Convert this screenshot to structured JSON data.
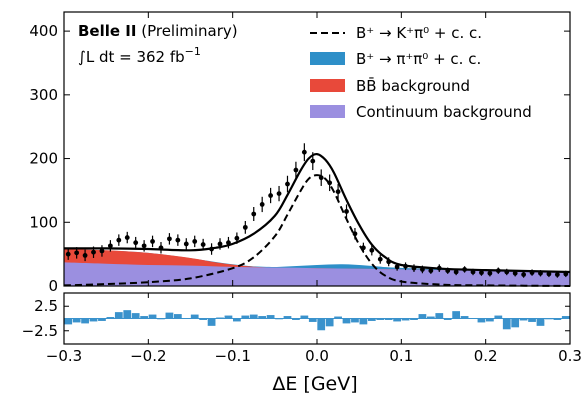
{
  "chart_data": {
    "type": "area",
    "xlabel": "ΔE [GeV]",
    "ylabel": "",
    "xlim": [
      -0.3,
      0.3
    ],
    "ylim": [
      0,
      430
    ],
    "pull_ylim": [
      -5.2,
      5.2
    ],
    "x_ticks": [
      -0.3,
      -0.2,
      -0.1,
      0.0,
      0.1,
      0.2,
      0.3
    ],
    "x_tick_labels": [
      "−0.3",
      "−0.2",
      "−0.1",
      "0.0",
      "0.1",
      "0.2",
      "0.3"
    ],
    "y_ticks": [
      0,
      100,
      200,
      300,
      400
    ],
    "y_tick_labels": [
      "0",
      "100",
      "200",
      "300",
      "400"
    ],
    "pull_ticks": [
      2.5,
      -2.5
    ],
    "pull_tick_labels": [
      "2.5",
      "−2.5"
    ],
    "annotations": {
      "experiment": "Belle II",
      "status": "(Preliminary)",
      "lumi_prefix": "∫L dt = 362 fb",
      "lumi_exp": "−1"
    },
    "legend": {
      "placement": "top-right",
      "entries": [
        {
          "label": "B⁺ → K⁺π⁰ + c. c.",
          "style": "dashed",
          "color": "#000000"
        },
        {
          "label": "B⁺ → π⁺π⁰ + c. c.",
          "style": "fill",
          "color": "#2e8fc8"
        },
        {
          "label": "BB̄ background",
          "style": "fill",
          "color": "#e8493a"
        },
        {
          "label": "Continuum background",
          "style": "fill",
          "color": "#9b8fe0"
        }
      ]
    },
    "colors": {
      "continuum": "#9b8fe0",
      "bbbar": "#e8493a",
      "pipi": "#2e8fc8",
      "pull": "#3a92cc"
    },
    "series": [
      {
        "name": "Continuum background",
        "x": [
          -0.3,
          -0.25,
          -0.2,
          -0.15,
          -0.1,
          -0.05,
          0.0,
          0.05,
          0.1,
          0.15,
          0.2,
          0.25,
          0.3
        ],
        "values": [
          37,
          35,
          33,
          32,
          30,
          29,
          28,
          27,
          26,
          25,
          24,
          23,
          22
        ]
      },
      {
        "name": "BB̄ background",
        "x": [
          -0.3,
          -0.25,
          -0.2,
          -0.15,
          -0.12,
          -0.09,
          -0.06,
          -0.03,
          0.0,
          0.05,
          0.1,
          0.2,
          0.3
        ],
        "values": [
          58,
          56,
          52,
          44,
          37,
          32,
          29,
          28,
          28,
          27,
          26,
          24,
          22
        ]
      },
      {
        "name": "B⁺ → π⁺π⁰ + c. c.",
        "x": [
          -0.3,
          -0.2,
          -0.1,
          -0.06,
          -0.03,
          0.0,
          0.03,
          0.06,
          0.09,
          0.15,
          0.2,
          0.3
        ],
        "values": [
          58,
          52,
          34,
          30,
          31,
          33,
          34,
          32,
          29,
          26,
          24,
          22
        ]
      },
      {
        "name": "B⁺ → K⁺π⁰ + c. c.",
        "x": [
          -0.3,
          -0.25,
          -0.2,
          -0.15,
          -0.1,
          -0.075,
          -0.05,
          -0.035,
          -0.02,
          -0.01,
          0.0,
          0.01,
          0.02,
          0.035,
          0.05,
          0.065,
          0.08,
          0.1,
          0.15,
          0.2,
          0.3
        ],
        "values": [
          1,
          3,
          6,
          12,
          28,
          45,
          78,
          112,
          148,
          168,
          174,
          168,
          148,
          105,
          65,
          35,
          17,
          7,
          2,
          1,
          0
        ]
      },
      {
        "name": "Total fit",
        "x": [
          -0.3,
          -0.25,
          -0.2,
          -0.15,
          -0.12,
          -0.1,
          -0.075,
          -0.05,
          -0.035,
          -0.02,
          -0.01,
          0.0,
          0.01,
          0.02,
          0.035,
          0.05,
          0.065,
          0.08,
          0.1,
          0.15,
          0.2,
          0.3
        ],
        "values": [
          59,
          59,
          58,
          56,
          60,
          66,
          82,
          110,
          143,
          180,
          200,
          207,
          198,
          178,
          135,
          96,
          65,
          46,
          33,
          27,
          25,
          22
        ]
      },
      {
        "name": "Data",
        "x": [
          -0.295,
          -0.285,
          -0.275,
          -0.265,
          -0.255,
          -0.245,
          -0.235,
          -0.225,
          -0.215,
          -0.205,
          -0.195,
          -0.185,
          -0.175,
          -0.165,
          -0.155,
          -0.145,
          -0.135,
          -0.125,
          -0.115,
          -0.105,
          -0.095,
          -0.085,
          -0.075,
          -0.065,
          -0.055,
          -0.045,
          -0.035,
          -0.025,
          -0.015,
          -0.005,
          0.005,
          0.015,
          0.025,
          0.035,
          0.045,
          0.055,
          0.065,
          0.075,
          0.085,
          0.095,
          0.105,
          0.115,
          0.125,
          0.135,
          0.145,
          0.155,
          0.165,
          0.175,
          0.185,
          0.195,
          0.205,
          0.215,
          0.225,
          0.235,
          0.245,
          0.255,
          0.265,
          0.275,
          0.285,
          0.295
        ],
        "values": [
          50,
          52,
          48,
          53,
          55,
          63,
          72,
          76,
          68,
          63,
          70,
          60,
          74,
          72,
          66,
          70,
          65,
          58,
          66,
          68,
          75,
          92,
          113,
          128,
          142,
          145,
          160,
          182,
          210,
          196,
          170,
          162,
          148,
          117,
          82,
          60,
          56,
          42,
          38,
          30,
          31,
          28,
          26,
          24,
          28,
          24,
          22,
          26,
          22,
          21,
          20,
          24,
          22,
          20,
          18,
          21,
          20,
          19,
          18,
          19
        ],
        "errors": [
          9,
          9,
          9,
          9,
          9,
          9,
          9,
          9,
          9,
          9,
          9,
          9,
          9,
          9,
          9,
          9,
          9,
          9,
          9,
          9,
          9,
          10,
          11,
          12,
          12,
          12,
          13,
          13,
          14,
          14,
          13,
          13,
          12,
          11,
          9,
          8,
          8,
          7,
          7,
          6,
          6,
          6,
          6,
          5,
          6,
          5,
          5,
          5,
          5,
          5,
          5,
          5,
          5,
          5,
          5,
          5,
          5,
          5,
          5,
          5
        ]
      },
      {
        "name": "Pull",
        "x": [
          -0.295,
          -0.285,
          -0.275,
          -0.265,
          -0.255,
          -0.245,
          -0.235,
          -0.225,
          -0.215,
          -0.205,
          -0.195,
          -0.185,
          -0.175,
          -0.165,
          -0.155,
          -0.145,
          -0.135,
          -0.125,
          -0.115,
          -0.105,
          -0.095,
          -0.085,
          -0.075,
          -0.065,
          -0.055,
          -0.045,
          -0.035,
          -0.025,
          -0.015,
          -0.005,
          0.005,
          0.015,
          0.025,
          0.035,
          0.045,
          0.055,
          0.065,
          0.075,
          0.085,
          0.095,
          0.105,
          0.115,
          0.125,
          0.135,
          0.145,
          0.155,
          0.165,
          0.175,
          0.185,
          0.195,
          0.205,
          0.215,
          0.225,
          0.235,
          0.245,
          0.255,
          0.265,
          0.275,
          0.285,
          0.295
        ],
        "values": [
          -1.2,
          -0.8,
          -1.0,
          -0.6,
          -0.5,
          0.3,
          1.3,
          1.7,
          1.1,
          0.5,
          0.8,
          -0.1,
          1.2,
          0.9,
          0.1,
          0.8,
          -0.3,
          -1.5,
          0.2,
          0.6,
          -0.6,
          0.6,
          0.8,
          0.5,
          0.7,
          0.0,
          0.5,
          -0.3,
          0.6,
          -0.7,
          -2.4,
          -1.6,
          0.4,
          -1.0,
          -0.8,
          -1.2,
          -0.5,
          -0.3,
          -0.3,
          -0.6,
          -0.4,
          -0.3,
          0.9,
          0.4,
          1.1,
          -0.3,
          1.5,
          0.5,
          0.1,
          -0.8,
          -0.6,
          0.6,
          -2.2,
          -1.8,
          -0.4,
          -0.7,
          -1.5,
          0.0,
          -0.3,
          0.5
        ]
      }
    ]
  }
}
